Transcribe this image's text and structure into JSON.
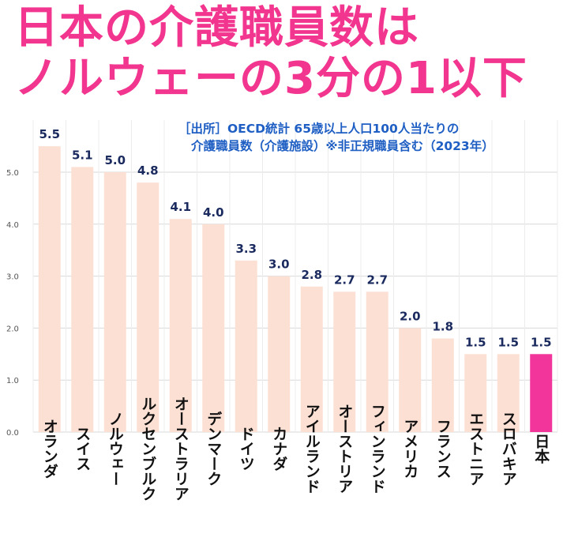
{
  "title_lines": [
    "日本の介護職員数は",
    "ノルウェーの3分の1以下"
  ],
  "source_lines": [
    "［出所］OECD統計 65歳以上人口100人当たりの",
    "介護職員数（介護施設）※非正規職員含む（2023年）"
  ],
  "colors": {
    "title": "#f2358f",
    "source": "#1f5fc4",
    "bar": "#fce0d4",
    "highlight": "#f2359a",
    "data_label": "#1a2a5e",
    "grid": "#d9d9d9"
  },
  "chart_data": {
    "type": "bar",
    "categories": [
      "オランダ",
      "スイス",
      "ノルウェー",
      "ルクセンブルク",
      "オーストラリア",
      "デンマーク",
      "ドイツ",
      "カナダ",
      "アイルランド",
      "オーストリア",
      "フィンランド",
      "アメリカ",
      "フランス",
      "エストニア",
      "スロバキア",
      "日本"
    ],
    "values": [
      5.5,
      5.1,
      5.0,
      4.8,
      4.1,
      4.0,
      3.3,
      3.0,
      2.8,
      2.7,
      2.7,
      2.0,
      1.8,
      1.5,
      1.5,
      1.5
    ],
    "value_labels": [
      "5.5",
      "5.1",
      "5.0",
      "4.8",
      "4.1",
      "4.0",
      "3.3",
      "3.0",
      "2.8",
      "2.7",
      "2.7",
      "2.0",
      "1.8",
      "1.5",
      "1.5",
      "1.5"
    ],
    "yticks": [
      "0.0",
      "1.0",
      "2.0",
      "3.0",
      "4.0",
      "5.0"
    ],
    "ylim": [
      0,
      6
    ],
    "highlight_category": "日本",
    "grid": true,
    "orientation": "vertical"
  }
}
